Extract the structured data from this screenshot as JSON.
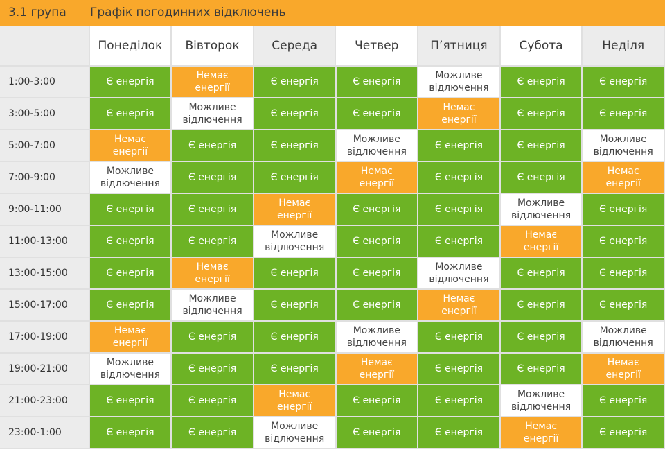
{
  "header": {
    "group": "3.1 група",
    "title": "Графік погодинних відключень"
  },
  "days": [
    "Понеділок",
    "Вівторок",
    "Середа",
    "Четвер",
    "П’ятниця",
    "Субота",
    "Неділя"
  ],
  "statuses": {
    "on": {
      "label": "Є енергія",
      "color": "#6db325"
    },
    "off": {
      "label": "Немає\nенергії",
      "color": "#f9a82b"
    },
    "maybe": {
      "label": "Можливе\nвідлючення",
      "color": "#ffffff"
    }
  },
  "colors": {
    "header_bar": "#f9a82b",
    "header_cell_alt": "#ececec",
    "grid_line": "#e0e0e0"
  },
  "rows": [
    {
      "time": "1:00-3:00",
      "cells": [
        "on",
        "off",
        "on",
        "on",
        "maybe",
        "on",
        "on"
      ]
    },
    {
      "time": "3:00-5:00",
      "cells": [
        "on",
        "maybe",
        "on",
        "on",
        "off",
        "on",
        "on"
      ]
    },
    {
      "time": "5:00-7:00",
      "cells": [
        "off",
        "on",
        "on",
        "maybe",
        "on",
        "on",
        "maybe"
      ]
    },
    {
      "time": "7:00-9:00",
      "cells": [
        "maybe",
        "on",
        "on",
        "off",
        "on",
        "on",
        "off"
      ]
    },
    {
      "time": "9:00-11:00",
      "cells": [
        "on",
        "on",
        "off",
        "on",
        "on",
        "maybe",
        "on"
      ]
    },
    {
      "time": "11:00-13:00",
      "cells": [
        "on",
        "on",
        "maybe",
        "on",
        "on",
        "off",
        "on"
      ]
    },
    {
      "time": "13:00-15:00",
      "cells": [
        "on",
        "off",
        "on",
        "on",
        "maybe",
        "on",
        "on"
      ]
    },
    {
      "time": "15:00-17:00",
      "cells": [
        "on",
        "maybe",
        "on",
        "on",
        "off",
        "on",
        "on"
      ]
    },
    {
      "time": "17:00-19:00",
      "cells": [
        "off",
        "on",
        "on",
        "maybe",
        "on",
        "on",
        "maybe"
      ]
    },
    {
      "time": "19:00-21:00",
      "cells": [
        "maybe",
        "on",
        "on",
        "off",
        "on",
        "on",
        "off"
      ]
    },
    {
      "time": "21:00-23:00",
      "cells": [
        "on",
        "on",
        "off",
        "on",
        "on",
        "maybe",
        "on"
      ]
    },
    {
      "time": "23:00-1:00",
      "cells": [
        "on",
        "on",
        "maybe",
        "on",
        "on",
        "off",
        "on"
      ]
    }
  ]
}
